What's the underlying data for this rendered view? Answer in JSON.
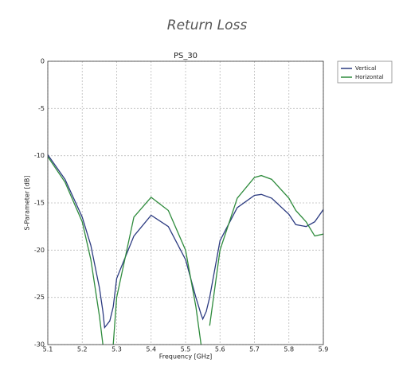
{
  "header": {
    "title": "Return Loss"
  },
  "chart_data": {
    "type": "line",
    "title": "PS_30",
    "x_label": "Frequency [GHz]",
    "y_label": "S-Parameter [dB]",
    "x": [
      5.1,
      5.15,
      5.2,
      5.225,
      5.25,
      5.26,
      5.265,
      5.28,
      5.29,
      5.3,
      5.35,
      5.4,
      5.45,
      5.5,
      5.53,
      5.545,
      5.55,
      5.56,
      5.57,
      5.6,
      5.65,
      5.7,
      5.72,
      5.75,
      5.8,
      5.82,
      5.85,
      5.875,
      5.9
    ],
    "series": [
      {
        "name": "Vertical",
        "color": "#2b3a80",
        "values": [
          -9.9,
          -12.5,
          -16.5,
          -19.5,
          -24,
          -26.5,
          -28.2,
          -27.5,
          -26,
          -23,
          -18.5,
          -16.3,
          -17.5,
          -21,
          -25,
          -26.8,
          -27.3,
          -26.5,
          -25,
          -19,
          -15.5,
          -14.2,
          -14.1,
          -14.5,
          -16.2,
          -17.3,
          -17.5,
          -17,
          -15.7
        ]
      },
      {
        "name": "Horizontal",
        "color": "#2e8b3c",
        "values": [
          -10.1,
          -12.8,
          -17,
          -21,
          -27,
          -30,
          null,
          null,
          -30,
          -25,
          -16.5,
          -14.4,
          -15.8,
          -20,
          -26,
          -30,
          null,
          null,
          -28,
          -20,
          -14.5,
          -12.3,
          -12.1,
          -12.5,
          -14.5,
          -15.8,
          -17,
          -18.5,
          -18.3
        ]
      }
    ],
    "xlim": [
      5.1,
      5.9
    ],
    "xticks": [
      5.1,
      5.2,
      5.3,
      5.4,
      5.5,
      5.6,
      5.7,
      5.8,
      5.9
    ],
    "ylim": [
      -30,
      0
    ],
    "yticks": [
      -30,
      -25,
      -20,
      -15,
      -10,
      -5,
      0
    ],
    "grid": true,
    "legend": "upper right outside"
  }
}
